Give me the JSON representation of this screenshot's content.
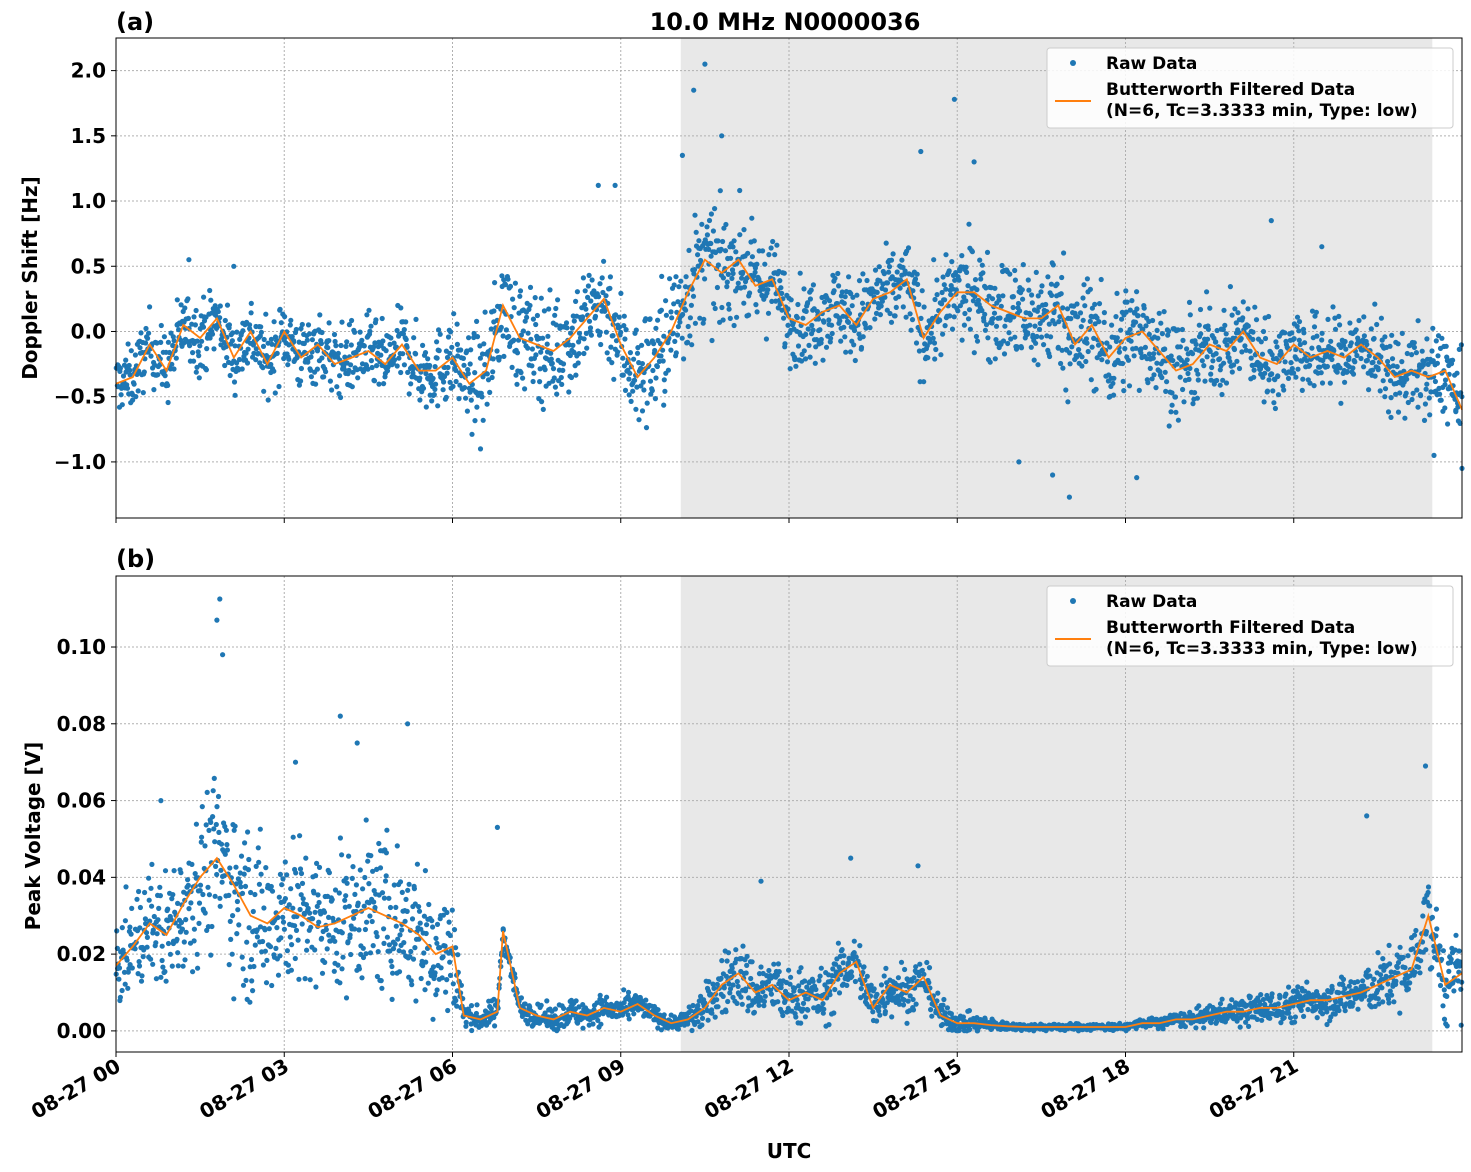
{
  "figure": {
    "title": "10.0 MHz N0000036",
    "xlabel": "UTC",
    "x_tick_labels": [
      "08-27 00",
      "08-27 03",
      "08-27 06",
      "08-27 09",
      "08-27 12",
      "08-27 15",
      "08-27 18",
      "08-27 21"
    ],
    "shaded_region_hours": [
      10.07,
      23.47
    ],
    "colors": {
      "raw": "#1f77b4",
      "filtered": "#ff7f0e",
      "shade": "#e8e8e8",
      "grid": "#b0b0b0"
    },
    "legend": {
      "raw_label": "Raw Data",
      "filtered_line1": "Butterworth Filtered Data",
      "filtered_line2": "(N=6, Tc=3.3333 min, Type: low)"
    }
  },
  "chart_data": [
    {
      "type": "scatter",
      "panel_label": "(a)",
      "title": "10.0 MHz N0000036",
      "ylabel": "Doppler Shift [Hz]",
      "xlabel": "",
      "x_unit": "hours UTC (08-27)",
      "xlim": [
        0,
        24
      ],
      "ylim": [
        -1.43,
        2.25
      ],
      "y_ticks": [
        2.0,
        1.5,
        1.0,
        0.5,
        0.0,
        -0.5,
        -1.0
      ],
      "y_tick_labels": [
        "2.0",
        "1.5",
        "1.0",
        "0.5",
        "0.0",
        "−0.5",
        "−1.0"
      ],
      "grid": true,
      "legend_position": "top-right",
      "series": [
        {
          "name": "Butterworth Filtered Data (N=6, Tc=3.3333 min, Type: low)",
          "kind": "line",
          "x": [
            0,
            0.3,
            0.6,
            0.9,
            1.2,
            1.5,
            1.8,
            2.1,
            2.4,
            2.7,
            3.0,
            3.3,
            3.6,
            3.9,
            4.2,
            4.5,
            4.8,
            5.1,
            5.4,
            5.7,
            6.0,
            6.3,
            6.6,
            6.9,
            7.2,
            7.5,
            7.8,
            8.1,
            8.4,
            8.7,
            9.0,
            9.3,
            9.6,
            9.9,
            10.2,
            10.5,
            10.8,
            11.1,
            11.4,
            11.7,
            12.0,
            12.3,
            12.6,
            12.9,
            13.2,
            13.5,
            13.8,
            14.1,
            14.4,
            14.7,
            15.0,
            15.3,
            15.6,
            15.9,
            16.2,
            16.5,
            16.8,
            17.1,
            17.4,
            17.7,
            18.0,
            18.3,
            18.6,
            18.9,
            19.2,
            19.5,
            19.8,
            20.1,
            20.4,
            20.7,
            21.0,
            21.3,
            21.6,
            21.9,
            22.2,
            22.5,
            22.8,
            23.1,
            23.4,
            23.7,
            24.0
          ],
          "y": [
            -0.4,
            -0.35,
            -0.1,
            -0.3,
            0.05,
            -0.05,
            0.1,
            -0.2,
            0.0,
            -0.25,
            0.0,
            -0.2,
            -0.1,
            -0.25,
            -0.2,
            -0.15,
            -0.25,
            -0.1,
            -0.3,
            -0.3,
            -0.2,
            -0.4,
            -0.3,
            0.2,
            -0.05,
            -0.1,
            -0.15,
            -0.05,
            0.1,
            0.25,
            -0.1,
            -0.35,
            -0.2,
            0.0,
            0.3,
            0.55,
            0.45,
            0.55,
            0.35,
            0.4,
            0.1,
            0.05,
            0.15,
            0.2,
            0.05,
            0.25,
            0.3,
            0.4,
            -0.05,
            0.15,
            0.3,
            0.3,
            0.2,
            0.15,
            0.1,
            0.1,
            0.2,
            -0.1,
            0.05,
            -0.2,
            -0.05,
            0.0,
            -0.15,
            -0.3,
            -0.25,
            -0.1,
            -0.15,
            0.0,
            -0.2,
            -0.25,
            -0.1,
            -0.2,
            -0.15,
            -0.2,
            -0.1,
            -0.2,
            -0.35,
            -0.3,
            -0.35,
            -0.3,
            -0.6
          ]
        },
        {
          "name": "Raw Data",
          "kind": "scatter",
          "spread_x": [
            0,
            1,
            2,
            3,
            4,
            5,
            6,
            7,
            8,
            9,
            10,
            11,
            12,
            13,
            14,
            15,
            16,
            17,
            18,
            19,
            20,
            21,
            22,
            23,
            24
          ],
          "spread_y": [
            0.25,
            0.3,
            0.3,
            0.3,
            0.3,
            0.3,
            0.35,
            0.45,
            0.45,
            0.45,
            0.55,
            0.45,
            0.35,
            0.35,
            0.35,
            0.4,
            0.45,
            0.5,
            0.45,
            0.4,
            0.35,
            0.35,
            0.35,
            0.35,
            0.4
          ],
          "outliers": [
            [
              10.5,
              2.05
            ],
            [
              10.3,
              1.85
            ],
            [
              10.1,
              1.35
            ],
            [
              14.95,
              1.78
            ],
            [
              14.35,
              1.38
            ],
            [
              15.3,
              1.3
            ],
            [
              8.6,
              1.12
            ],
            [
              8.9,
              1.12
            ],
            [
              10.8,
              1.5
            ],
            [
              20.6,
              0.85
            ],
            [
              21.5,
              0.65
            ],
            [
              17.0,
              -1.27
            ],
            [
              16.1,
              -1.0
            ],
            [
              18.2,
              -1.12
            ],
            [
              16.7,
              -1.1
            ],
            [
              6.5,
              -0.9
            ],
            [
              24.0,
              -1.05
            ],
            [
              23.5,
              -0.95
            ],
            [
              1.3,
              0.55
            ],
            [
              2.1,
              0.5
            ]
          ]
        }
      ]
    },
    {
      "type": "scatter",
      "panel_label": "(b)",
      "title": "",
      "ylabel": "Peak Voltage [V]",
      "xlabel": "UTC",
      "x_unit": "hours UTC (08-27)",
      "xlim": [
        0,
        24
      ],
      "ylim": [
        -0.0055,
        0.1185
      ],
      "y_ticks": [
        0.1,
        0.08,
        0.06,
        0.04,
        0.02,
        0.0
      ],
      "y_tick_labels": [
        "0.10",
        "0.08",
        "0.06",
        "0.04",
        "0.02",
        "0.00"
      ],
      "grid": true,
      "legend_position": "top-right",
      "series": [
        {
          "name": "Butterworth Filtered Data (N=6, Tc=3.3333 min, Type: low)",
          "kind": "line",
          "x": [
            0,
            0.3,
            0.6,
            0.9,
            1.2,
            1.5,
            1.8,
            2.1,
            2.4,
            2.7,
            3.0,
            3.3,
            3.6,
            3.9,
            4.2,
            4.5,
            4.8,
            5.1,
            5.4,
            5.7,
            6.0,
            6.2,
            6.5,
            6.8,
            6.9,
            7.2,
            7.5,
            7.8,
            8.1,
            8.4,
            8.7,
            9.0,
            9.3,
            9.6,
            9.9,
            10.2,
            10.5,
            10.8,
            11.1,
            11.4,
            11.7,
            12.0,
            12.3,
            12.6,
            12.9,
            13.2,
            13.5,
            13.8,
            14.1,
            14.4,
            14.7,
            15.0,
            15.3,
            15.6,
            15.9,
            16.2,
            16.5,
            16.8,
            17.1,
            17.4,
            17.7,
            18.0,
            18.3,
            18.6,
            18.9,
            19.2,
            19.5,
            19.8,
            20.1,
            20.4,
            20.7,
            21.0,
            21.3,
            21.6,
            21.9,
            22.2,
            22.5,
            22.8,
            23.1,
            23.4,
            23.7,
            24.0
          ],
          "y": [
            0.017,
            0.022,
            0.028,
            0.025,
            0.033,
            0.04,
            0.045,
            0.038,
            0.03,
            0.028,
            0.032,
            0.03,
            0.027,
            0.028,
            0.03,
            0.032,
            0.03,
            0.028,
            0.025,
            0.02,
            0.022,
            0.004,
            0.003,
            0.005,
            0.026,
            0.006,
            0.004,
            0.003,
            0.005,
            0.004,
            0.006,
            0.005,
            0.007,
            0.004,
            0.002,
            0.003,
            0.006,
            0.012,
            0.015,
            0.01,
            0.012,
            0.008,
            0.01,
            0.008,
            0.015,
            0.018,
            0.006,
            0.012,
            0.01,
            0.014,
            0.004,
            0.002,
            0.002,
            0.0015,
            0.0012,
            0.001,
            0.001,
            0.001,
            0.001,
            0.001,
            0.001,
            0.001,
            0.002,
            0.002,
            0.003,
            0.003,
            0.004,
            0.005,
            0.005,
            0.006,
            0.006,
            0.007,
            0.008,
            0.008,
            0.009,
            0.01,
            0.012,
            0.014,
            0.016,
            0.03,
            0.012,
            0.015
          ]
        },
        {
          "name": "Raw Data",
          "kind": "scatter",
          "spread_x": [
            0,
            1,
            2,
            3,
            4,
            5,
            6,
            6.3,
            6.8,
            7.5,
            8,
            9,
            10,
            10.5,
            11,
            12,
            13,
            14,
            15,
            16,
            17,
            18,
            19,
            20,
            21,
            22,
            23,
            24
          ],
          "spread_y": [
            0.012,
            0.018,
            0.025,
            0.022,
            0.02,
            0.022,
            0.018,
            0.003,
            0.004,
            0.003,
            0.004,
            0.004,
            0.002,
            0.006,
            0.01,
            0.008,
            0.008,
            0.008,
            0.003,
            0.001,
            0.001,
            0.001,
            0.002,
            0.004,
            0.005,
            0.006,
            0.01,
            0.012
          ],
          "outliers": [
            [
              1.85,
              0.1125
            ],
            [
              1.8,
              0.107
            ],
            [
              1.9,
              0.098
            ],
            [
              4.0,
              0.082
            ],
            [
              4.3,
              0.075
            ],
            [
              5.2,
              0.08
            ],
            [
              6.8,
              0.053
            ],
            [
              13.1,
              0.045
            ],
            [
              14.3,
              0.043
            ],
            [
              23.35,
              0.069
            ],
            [
              22.3,
              0.056
            ],
            [
              11.5,
              0.039
            ],
            [
              0.8,
              0.06
            ],
            [
              3.2,
              0.07
            ]
          ]
        }
      ]
    }
  ]
}
